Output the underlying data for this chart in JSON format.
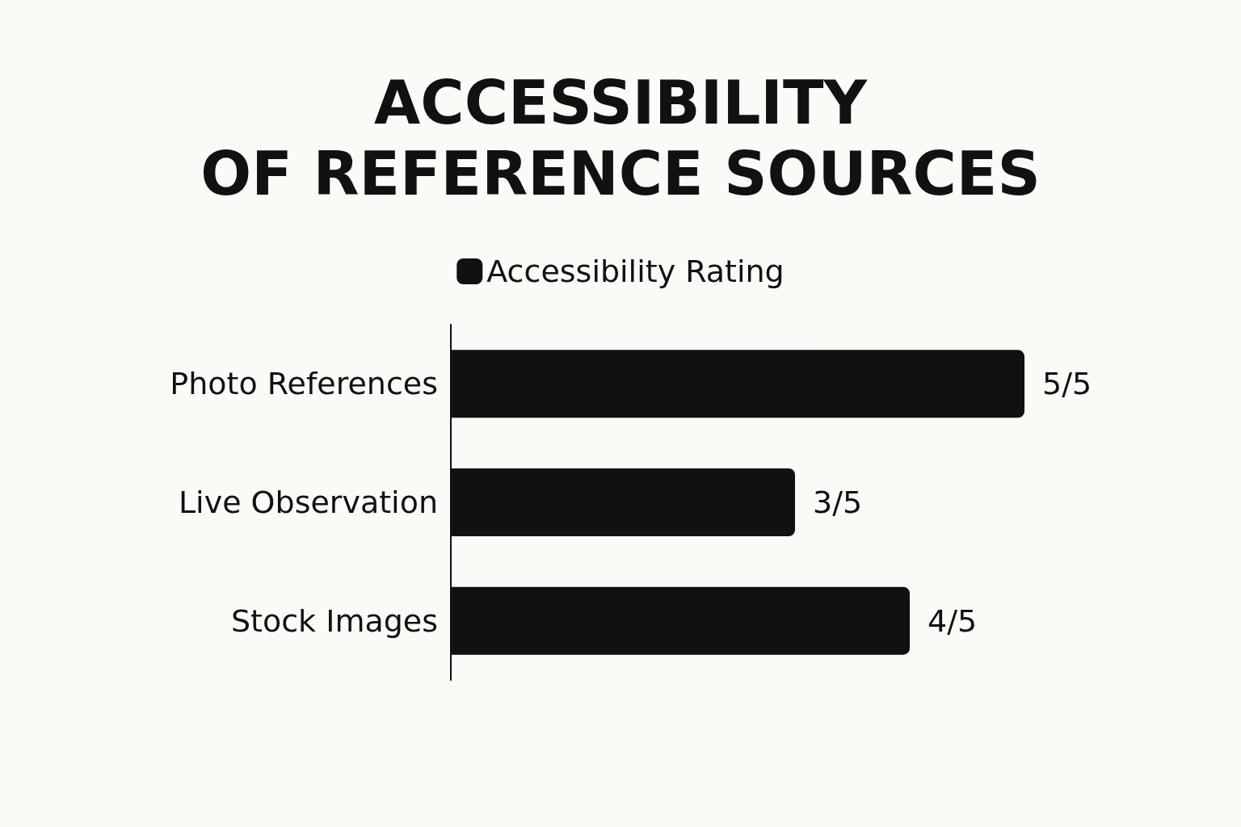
{
  "chart_data": {
    "type": "bar",
    "title": "ACCESSIBILITY OF REFERENCE SOURCES",
    "orientation": "horizontal",
    "legend": "top",
    "categories": [
      "Photo References",
      "Live Observation",
      "Stock Images"
    ],
    "series": [
      {
        "name": "Accessibility Rating",
        "color": "#111111",
        "values": [
          1,
          0.6,
          0.8
        ],
        "value_labels": [
          "5/5",
          "3/5",
          "4/5"
        ]
      }
    ]
  }
}
